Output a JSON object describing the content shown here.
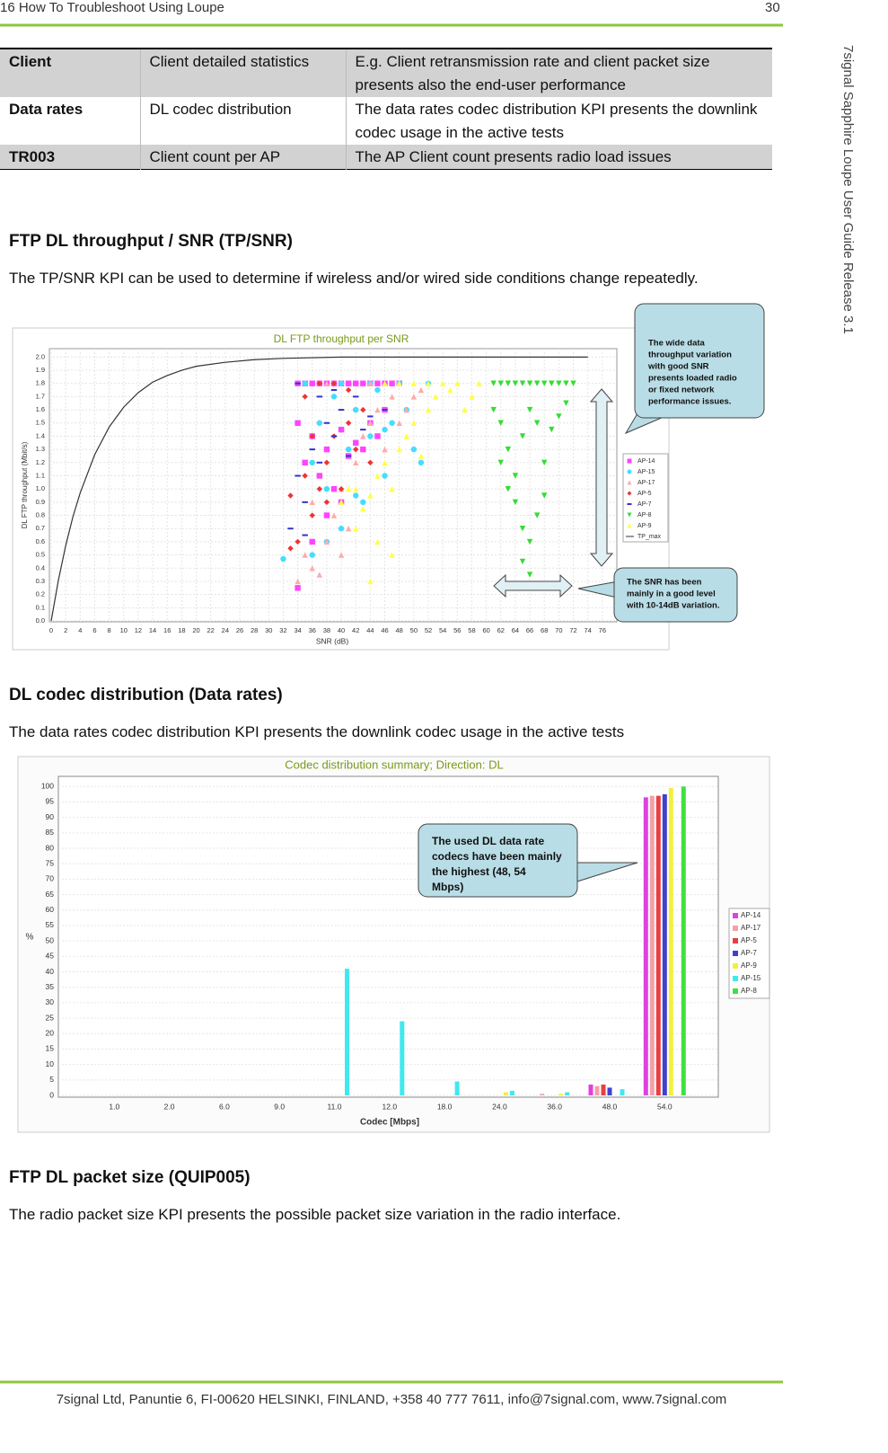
{
  "header": {
    "title": "16 How To Troubleshoot Using Loupe",
    "page": "30"
  },
  "side_text": "7signal Sapphire Loupe User Guide Release 3.1",
  "table": {
    "rows": [
      [
        "Client",
        "Client detailed statistics",
        "E.g. Client retransmission rate and client packet size presents also the end-user performance"
      ],
      [
        "Data rates",
        "DL codec distribution",
        "The data rates codec distribution KPI presents the downlink codec usage in the active tests"
      ],
      [
        "TR003",
        "Client count per AP",
        "The AP Client count presents radio load issues"
      ]
    ]
  },
  "sections": [
    {
      "heading": "FTP DL throughput / SNR (TP/SNR)",
      "text": "The TP/SNR KPI can be used to determine if wireless and/or wired side conditions change repeatedly."
    },
    {
      "heading": "DL codec distribution (Data rates)",
      "text": "The data rates codec distribution KPI presents the downlink codec usage in the active tests"
    },
    {
      "heading": "FTP DL packet size (QUIP005)",
      "text": "The radio packet size KPI presents the possible packet size variation in the radio interface."
    }
  ],
  "chart_data": [
    {
      "type": "scatter",
      "title": "DL FTP throughput per SNR",
      "x_label": "SNR (dB)",
      "y_label": "DL FTP throughput (Mbit/s)",
      "xlim": [
        0,
        78
      ],
      "ylim": [
        0,
        2.05
      ],
      "grid": true,
      "xticks": [
        0,
        2,
        4,
        6,
        8,
        10,
        12,
        14,
        16,
        18,
        20,
        22,
        24,
        26,
        28,
        30,
        32,
        34,
        36,
        38,
        40,
        42,
        44,
        46,
        48,
        50,
        52,
        54,
        56,
        58,
        60,
        62,
        64,
        66,
        68,
        70,
        72,
        74,
        76
      ],
      "yticks": [
        {
          "value": 0,
          "label": "0.0"
        },
        0.1,
        0.2,
        0.3,
        0.4,
        0.5,
        0.6,
        0.7,
        0.8,
        0.9,
        {
          "value": 1,
          "label": "1.0"
        },
        1.1,
        1.2,
        1.3,
        1.4,
        1.5,
        1.6,
        1.7,
        1.8,
        1.9,
        {
          "value": 2,
          "label": "2.0"
        }
      ],
      "series": [
        {
          "name": "AP-14",
          "color": "#ff44ff",
          "marker": "square",
          "x": [
            34,
            35,
            36,
            37,
            38,
            39,
            40,
            41,
            42,
            43,
            44,
            45,
            46,
            47,
            48,
            34,
            36,
            38,
            40,
            42,
            44,
            46,
            35,
            37,
            39,
            41,
            43,
            45,
            36,
            40,
            34,
            38
          ],
          "values": [
            1.8,
            1.8,
            1.8,
            1.8,
            1.8,
            1.8,
            1.8,
            1.8,
            1.8,
            1.8,
            1.8,
            1.8,
            1.8,
            1.8,
            1.8,
            1.5,
            1.4,
            1.3,
            1.45,
            1.35,
            1.5,
            1.6,
            1.2,
            1.1,
            1.0,
            1.25,
            1.3,
            1.4,
            0.6,
            0.9,
            0.25,
            0.8
          ]
        },
        {
          "name": "AP-15",
          "color": "#44ddff",
          "marker": "circle",
          "x": [
            32,
            35,
            36,
            37,
            38,
            39,
            40,
            41,
            42,
            43,
            44,
            45,
            46,
            47,
            48,
            49,
            50,
            51,
            52,
            40,
            44,
            36,
            38,
            42,
            46
          ],
          "values": [
            0.47,
            1.8,
            1.2,
            1.5,
            1.0,
            1.7,
            0.7,
            1.3,
            1.6,
            0.9,
            1.4,
            1.75,
            1.1,
            1.5,
            1.8,
            1.6,
            1.3,
            1.2,
            1.8,
            1.8,
            1.8,
            0.5,
            0.6,
            0.95,
            1.45
          ]
        },
        {
          "name": "AP-17",
          "color": "#ffaaaa",
          "marker": "triangle-up",
          "x": [
            34,
            36,
            37,
            38,
            39,
            40,
            41,
            42,
            43,
            44,
            45,
            46,
            47,
            48,
            49,
            50,
            51,
            38,
            44,
            40,
            35,
            36
          ],
          "values": [
            0.3,
            0.4,
            0.35,
            0.6,
            0.8,
            1.0,
            0.7,
            1.2,
            1.4,
            1.5,
            1.6,
            1.3,
            1.7,
            1.5,
            1.6,
            1.7,
            1.75,
            1.8,
            1.8,
            0.5,
            0.5,
            0.9
          ]
        },
        {
          "name": "AP-5",
          "color": "#ee3333",
          "marker": "diamond",
          "x": [
            33,
            34,
            35,
            36,
            37,
            38,
            39,
            40,
            41,
            42,
            43,
            44,
            35,
            37,
            39,
            41,
            33,
            36,
            38
          ],
          "values": [
            0.95,
            0.6,
            1.1,
            0.8,
            1.0,
            1.2,
            1.4,
            1.0,
            1.5,
            1.3,
            1.6,
            1.2,
            1.7,
            1.8,
            1.8,
            1.75,
            0.55,
            1.4,
            0.9
          ]
        },
        {
          "name": "AP-7",
          "color": "#3333cc",
          "marker": "dash",
          "x": [
            33,
            34,
            35,
            36,
            37,
            38,
            39,
            40,
            41,
            42,
            43,
            44,
            46,
            35,
            37,
            39,
            34
          ],
          "values": [
            0.7,
            1.1,
            0.9,
            1.3,
            1.2,
            1.5,
            1.4,
            1.6,
            1.25,
            1.7,
            1.45,
            1.55,
            1.6,
            0.65,
            1.7,
            1.75,
            1.8
          ]
        },
        {
          "name": "AP-8",
          "color": "#33dd33",
          "marker": "triangle-down",
          "x": [
            61,
            62,
            63,
            64,
            65,
            66,
            67,
            68,
            69,
            70,
            71,
            72,
            61,
            62,
            63,
            64,
            65,
            66,
            67,
            68,
            69,
            70,
            71,
            64,
            65,
            66,
            67,
            68,
            65,
            66,
            63,
            62
          ],
          "values": [
            1.8,
            1.8,
            1.8,
            1.8,
            1.8,
            1.8,
            1.8,
            1.8,
            1.8,
            1.8,
            1.8,
            1.8,
            1.6,
            1.5,
            1.3,
            1.1,
            1.4,
            1.6,
            1.5,
            1.2,
            1.45,
            1.55,
            1.65,
            0.9,
            0.7,
            0.6,
            0.8,
            0.95,
            0.45,
            0.35,
            1.0,
            1.2
          ]
        },
        {
          "name": "AP-9",
          "color": "#ffff44",
          "marker": "triangle-up",
          "x": [
            40,
            41,
            42,
            43,
            44,
            45,
            46,
            47,
            48,
            49,
            50,
            51,
            52,
            53,
            54,
            55,
            56,
            57,
            58,
            59,
            45,
            44,
            48,
            50,
            52,
            46,
            42,
            47
          ],
          "values": [
            0.9,
            1.0,
            1.0,
            0.85,
            0.95,
            1.1,
            1.2,
            1.0,
            1.3,
            1.4,
            1.5,
            1.25,
            1.6,
            1.7,
            1.8,
            1.75,
            1.8,
            1.6,
            1.7,
            1.8,
            0.6,
            0.3,
            1.8,
            1.8,
            1.8,
            1.8,
            0.7,
            0.5
          ]
        },
        {
          "name": "TP_max",
          "color": "#333333",
          "marker": "line",
          "x": [
            0,
            1,
            2,
            3,
            4,
            6,
            8,
            10,
            12,
            14,
            16,
            18,
            20,
            24,
            28,
            32,
            40,
            50,
            60,
            74
          ],
          "values": [
            0,
            0.31,
            0.57,
            0.79,
            0.97,
            1.26,
            1.47,
            1.62,
            1.73,
            1.81,
            1.86,
            1.9,
            1.93,
            1.96,
            1.98,
            1.99,
            2.0,
            2.0,
            2.0,
            2.0
          ]
        }
      ],
      "annotations": [
        {
          "lines": [
            "The wide data",
            "throughput variation",
            "with good SNR",
            "presents loaded radio",
            "or fixed network",
            "performance issues."
          ]
        },
        {
          "lines": [
            "The SNR has  been",
            "mainly in a good level",
            "with 10-14dB  variation."
          ]
        }
      ]
    },
    {
      "type": "bar",
      "title": "Codec distribution summary; Direction: DL",
      "x_label": "Codec [Mbps]",
      "y_label": "%",
      "categories": [
        "1.0",
        "2.0",
        "6.0",
        "9.0",
        "11.0",
        "12.0",
        "18.0",
        "24.0",
        "36.0",
        "48.0",
        "54.0"
      ],
      "ylim": [
        0,
        103
      ],
      "yticks": [
        0,
        5,
        10,
        15,
        20,
        25,
        30,
        35,
        40,
        45,
        50,
        55,
        60,
        65,
        70,
        75,
        80,
        85,
        90,
        95,
        100
      ],
      "grid": true,
      "series": [
        {
          "name": "AP-14",
          "color": "#e040e0",
          "values": [
            0,
            0,
            0,
            0,
            0,
            0,
            0,
            0,
            0,
            3.5,
            96.5
          ]
        },
        {
          "name": "AP-17",
          "color": "#f4a0a8",
          "values": [
            0,
            0,
            0,
            0,
            0,
            0,
            0,
            0,
            0.5,
            3,
            97
          ]
        },
        {
          "name": "AP-5",
          "color": "#e84040",
          "values": [
            0,
            0,
            0,
            0,
            0,
            0,
            0,
            0,
            0,
            3.5,
            97
          ]
        },
        {
          "name": "AP-7",
          "color": "#4040d0",
          "values": [
            0,
            0,
            0,
            0,
            0,
            0,
            0,
            0,
            0,
            2.5,
            97.5
          ]
        },
        {
          "name": "AP-9",
          "color": "#f0f040",
          "values": [
            0,
            0,
            0,
            0,
            0,
            0,
            0,
            1,
            0.5,
            0,
            99.5
          ]
        },
        {
          "name": "AP-15",
          "color": "#40e8f0",
          "values": [
            0,
            0,
            0,
            0,
            41,
            24,
            4.5,
            1.5,
            1,
            2,
            0
          ]
        },
        {
          "name": "AP-8",
          "color": "#40e040",
          "values": [
            0,
            0,
            0,
            0,
            0,
            0,
            0,
            0,
            0,
            0,
            100
          ]
        }
      ],
      "annotations": [
        {
          "lines": [
            "The used DL data  rate",
            "codecs have been mainly",
            "the highest  (48, 54",
            "Mbps)"
          ]
        }
      ]
    }
  ],
  "footer": "7signal Ltd, Panuntie 6, FI-00620 HELSINKI, FINLAND, +358 40 777 7611, info@7signal.com, www.7signal.com"
}
